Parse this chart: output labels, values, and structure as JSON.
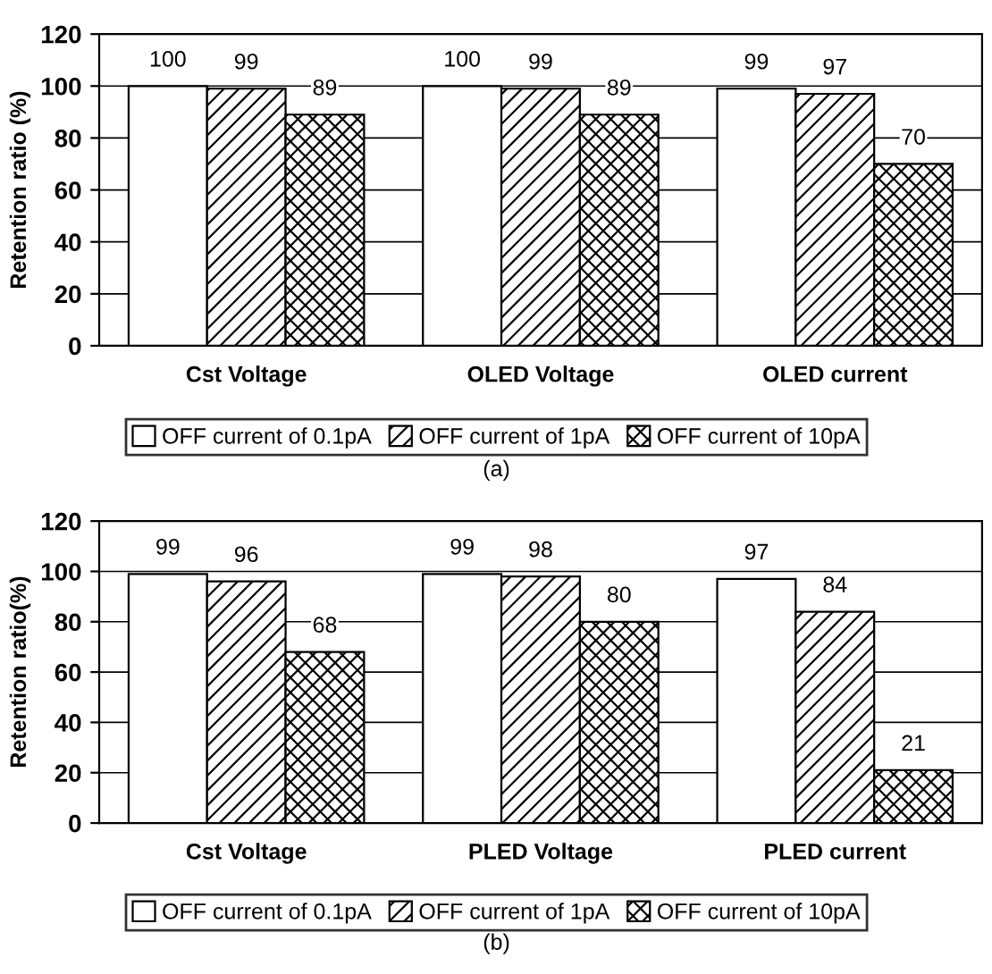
{
  "chart_data": [
    {
      "type": "bar",
      "ylabel": "Retention ratio (%)",
      "categories": [
        "Cst Voltage",
        "OLED Voltage",
        "OLED current"
      ],
      "series": [
        {
          "name": "OFF current of 0.1pA",
          "color": "#ffffff",
          "values": [
            100,
            100,
            99
          ]
        },
        {
          "name": "OFF current of 1pA",
          "color": "#000000",
          "values": [
            99,
            99,
            97
          ]
        },
        {
          "name": "OFF current of 10pA",
          "color": "#000000",
          "values": [
            89,
            89,
            70
          ]
        }
      ],
      "ylim": [
        0,
        120
      ],
      "yticks": [
        0,
        20,
        40,
        60,
        80,
        100,
        120
      ],
      "grid": "y",
      "legend": "bottom",
      "data_labels": true,
      "annotations": [
        "(a)"
      ]
    },
    {
      "type": "bar",
      "ylabel": "Retention ratio(%)",
      "categories": [
        "Cst Voltage",
        "PLED Voltage",
        "PLED current"
      ],
      "series": [
        {
          "name": "OFF current of 0.1pA",
          "color": "#ffffff",
          "values": [
            99,
            99,
            97
          ]
        },
        {
          "name": "OFF current of 1pA",
          "color": "#000000",
          "values": [
            96,
            98,
            84
          ]
        },
        {
          "name": "OFF current of 10pA",
          "color": "#000000",
          "values": [
            68,
            80,
            21
          ]
        }
      ],
      "ylim": [
        0,
        120
      ],
      "yticks": [
        0,
        20,
        40,
        60,
        80,
        100,
        120
      ],
      "grid": "y",
      "legend": "bottom",
      "data_labels": true,
      "annotations": [
        "(b)"
      ]
    }
  ]
}
